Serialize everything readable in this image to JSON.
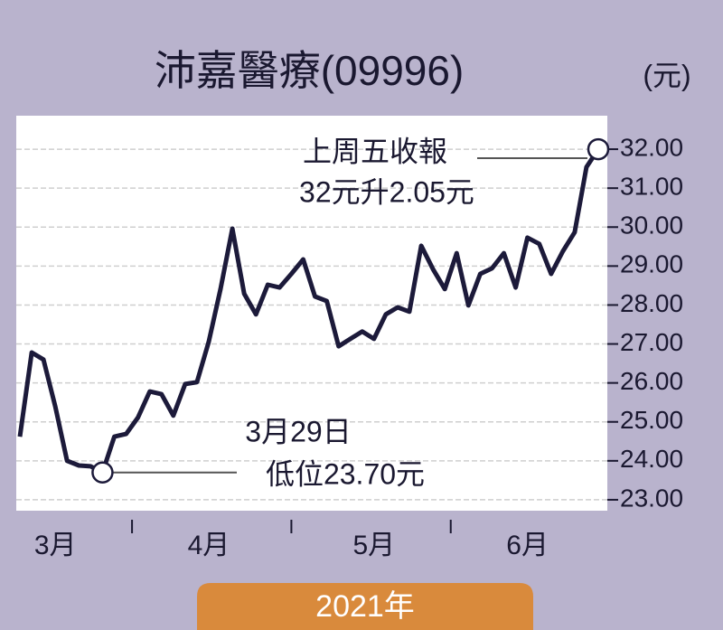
{
  "chart_data": {
    "type": "line",
    "title": "沛嘉醫療(09996)",
    "y_label": "(元)",
    "x_label": "2021年",
    "categories": [
      null,
      null,
      null,
      "3月",
      null,
      null,
      null,
      null,
      null,
      null,
      null,
      null,
      null,
      null,
      null,
      null,
      "4月",
      null,
      null,
      null,
      null,
      null,
      null,
      null,
      null,
      null,
      null,
      null,
      null,
      null,
      "5月",
      null,
      null,
      null,
      null,
      null,
      null,
      null,
      null,
      null,
      null,
      null,
      null,
      "6月",
      null,
      null,
      null,
      null,
      null,
      null
    ],
    "series": [
      {
        "name": "沛嘉醫療",
        "color": "#1c1a3a",
        "values": [
          24.62,
          26.78,
          26.6,
          25.39,
          24.0,
          23.88,
          23.86,
          23.7,
          24.62,
          24.69,
          25.11,
          25.78,
          25.71,
          25.16,
          25.97,
          26.02,
          27.06,
          28.41,
          29.96,
          28.29,
          27.76,
          28.52,
          28.45,
          28.8,
          29.17,
          28.22,
          28.1,
          26.94,
          27.13,
          27.32,
          27.13,
          27.76,
          27.94,
          27.83,
          29.52,
          28.92,
          28.41,
          29.33,
          27.99,
          28.8,
          28.94,
          29.33,
          28.45,
          29.73,
          29.57,
          28.8,
          29.38,
          29.87,
          31.54,
          32.0
        ]
      }
    ],
    "ylim": [
      22.72,
      32.86
    ],
    "yticks": [
      {
        "value": 23,
        "label": "23.00"
      },
      {
        "value": 24,
        "label": "24.00"
      },
      {
        "value": 25,
        "label": "25.00"
      },
      {
        "value": 26,
        "label": "26.00"
      },
      {
        "value": 27,
        "label": "27.00"
      },
      {
        "value": 28,
        "label": "28.00"
      },
      {
        "value": 29,
        "label": "29.00"
      },
      {
        "value": 30,
        "label": "30.00"
      },
      {
        "value": 31,
        "label": "31.00"
      },
      {
        "value": 32,
        "label": "32.00"
      }
    ],
    "grid": true,
    "annotations": [
      "上周五收報",
      "32元升2.05元",
      "3月29日",
      "低位23.70元"
    ]
  }
}
